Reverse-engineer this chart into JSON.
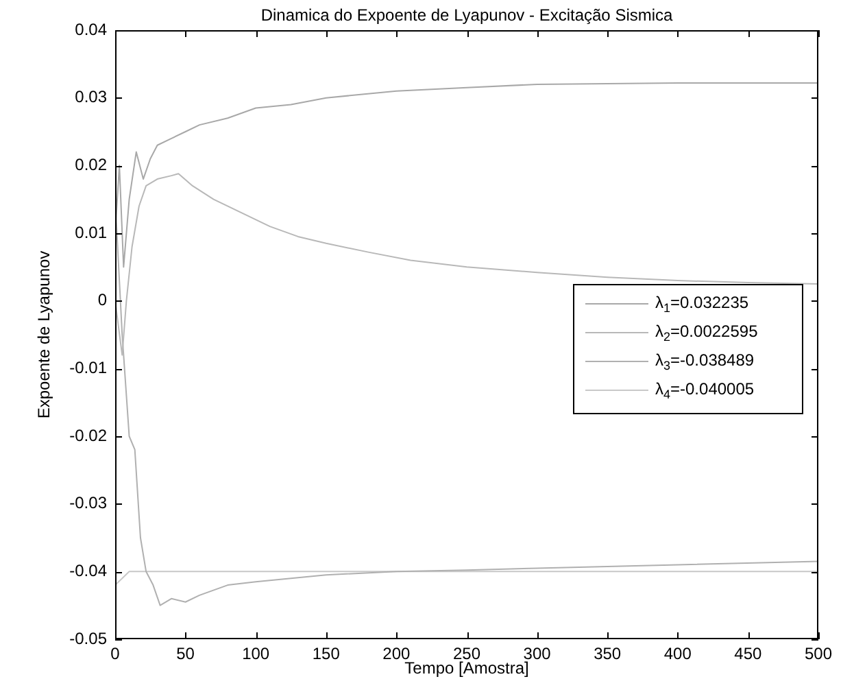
{
  "chart_data": {
    "type": "line",
    "title": "Dinamica do Expoente de Lyapunov - Excitação Sismica",
    "xlabel": "Tempo [Amostra]",
    "ylabel": "Expoente de Lyapunov",
    "xlim": [
      0,
      500
    ],
    "xticks": [
      0,
      50,
      100,
      150,
      200,
      250,
      300,
      350,
      400,
      450,
      500
    ],
    "ylim": [
      -0.05,
      0.04
    ],
    "yticks": [
      -0.05,
      -0.04,
      -0.03,
      -0.02,
      -0.01,
      0,
      0.01,
      0.02,
      0.03,
      0.04
    ],
    "grid": false,
    "legend": "right",
    "marker": "none",
    "line_style": "solid",
    "series": [
      {
        "name": "λ$_{1}$=0.032235",
        "color": "#a8a8a8",
        "x": [
          0,
          3,
          6,
          10,
          15,
          20,
          25,
          30,
          40,
          50,
          60,
          80,
          100,
          125,
          150,
          200,
          250,
          300,
          400,
          500
        ],
        "values": [
          0.01,
          0.02,
          0.005,
          0.015,
          0.022,
          0.018,
          0.021,
          0.023,
          0.024,
          0.025,
          0.026,
          0.027,
          0.0285,
          0.029,
          0.03,
          0.031,
          0.0315,
          0.032,
          0.0322,
          0.0322
        ]
      },
      {
        "name": "λ$_{2}$=0.0022595",
        "color": "#b8b8b8",
        "x": [
          0,
          5,
          8,
          12,
          17,
          22,
          30,
          40,
          45,
          55,
          70,
          90,
          110,
          130,
          150,
          180,
          210,
          250,
          300,
          350,
          400,
          450,
          500
        ],
        "values": [
          0,
          -0.008,
          0,
          0.008,
          0.014,
          0.017,
          0.018,
          0.0185,
          0.0188,
          0.017,
          0.015,
          0.013,
          0.011,
          0.0095,
          0.0085,
          0.0072,
          0.006,
          0.005,
          0.0042,
          0.0035,
          0.003,
          0.0027,
          0.0025
        ]
      },
      {
        "name": "λ$_{3}$=-0.038489",
        "color": "#b0b0b0",
        "x": [
          0,
          5,
          10,
          14,
          18,
          22,
          27,
          32,
          40,
          50,
          60,
          80,
          100,
          150,
          200,
          250,
          300,
          400,
          500
        ],
        "values": [
          0.015,
          -0.005,
          -0.02,
          -0.022,
          -0.035,
          -0.04,
          -0.042,
          -0.045,
          -0.044,
          -0.0445,
          -0.0435,
          -0.042,
          -0.0415,
          -0.0405,
          -0.04,
          -0.0398,
          -0.0395,
          -0.039,
          -0.0385
        ]
      },
      {
        "name": "λ$_{4}$=-0.040005",
        "color": "#c8c8c8",
        "x": [
          0,
          5,
          10,
          500
        ],
        "values": [
          -0.042,
          -0.041,
          -0.04,
          -0.04
        ]
      }
    ]
  }
}
